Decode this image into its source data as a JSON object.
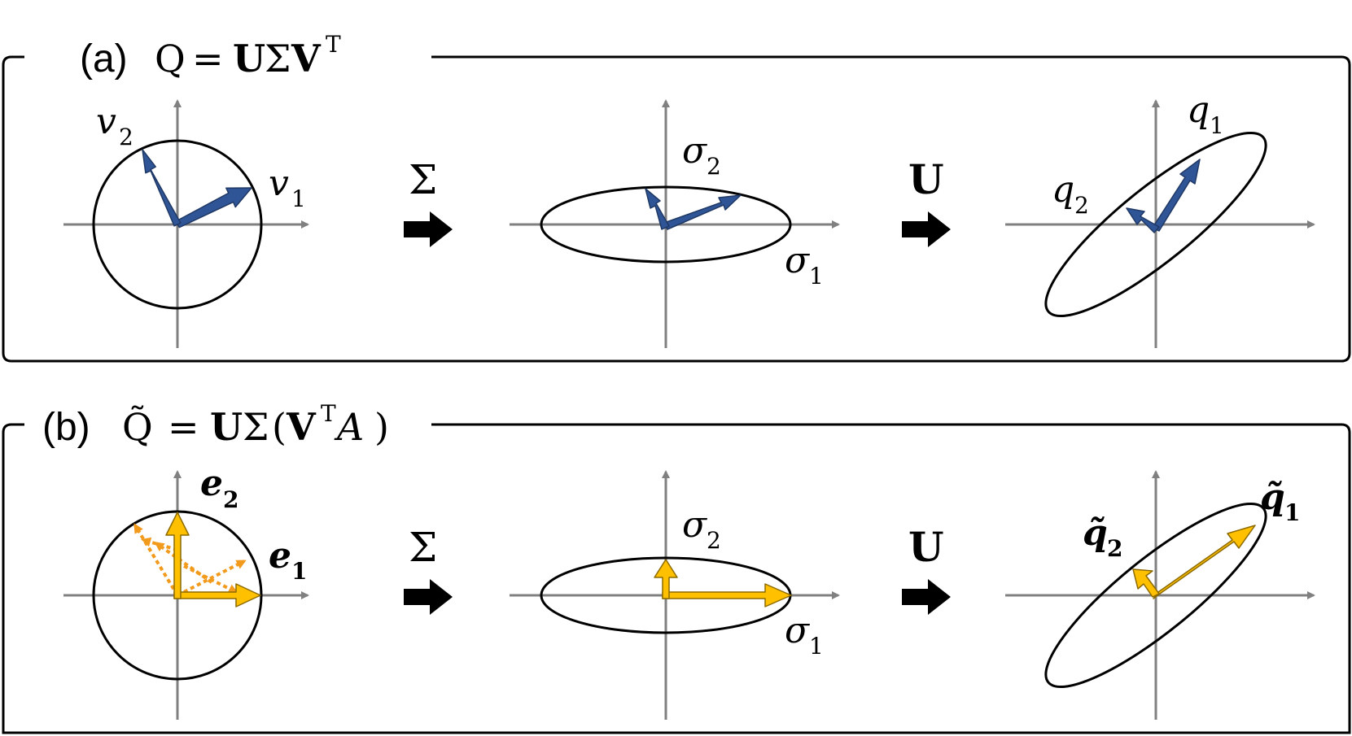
{
  "colors": {
    "axis": "#808080",
    "frame": "#000000",
    "blue_vector": "#2F5597",
    "gold_vector": "#FFC000",
    "orange_dashed": "#F29A1C"
  },
  "panel_a": {
    "label": "(a)",
    "equation": {
      "lhs": "Q",
      "equals": "=",
      "U": "U",
      "Sigma": "Σ",
      "V": "V",
      "sup": "T"
    },
    "op1": "Σ",
    "op2": "U",
    "circle_labels": {
      "v1": "v",
      "v1_sub": "1",
      "v2": "v",
      "v2_sub": "2"
    },
    "ellipse_labels": {
      "s1": "σ",
      "s1_sub": "1",
      "s2": "σ",
      "s2_sub": "2"
    },
    "rotated_labels": {
      "q1": "q",
      "q1_sub": "1",
      "q2": "q",
      "q2_sub": "2"
    }
  },
  "panel_b": {
    "label": "(b)",
    "equation": {
      "lhs": "Q̃",
      "equals": "=",
      "U": "U",
      "Sigma": "Σ",
      "open": "(",
      "V": "V",
      "sup": "T",
      "A": "A",
      "close": ")"
    },
    "op1": "Σ",
    "op2": "U",
    "circle_labels": {
      "e1": "e",
      "e1_sub": "1",
      "e2": "e",
      "e2_sub": "2"
    },
    "ellipse_labels": {
      "s1": "σ",
      "s1_sub": "1",
      "s2": "σ",
      "s2_sub": "2"
    },
    "rotated_labels": {
      "q1": "q̃",
      "q1_sub": "1",
      "q2": "q̃",
      "q2_sub": "2"
    }
  }
}
